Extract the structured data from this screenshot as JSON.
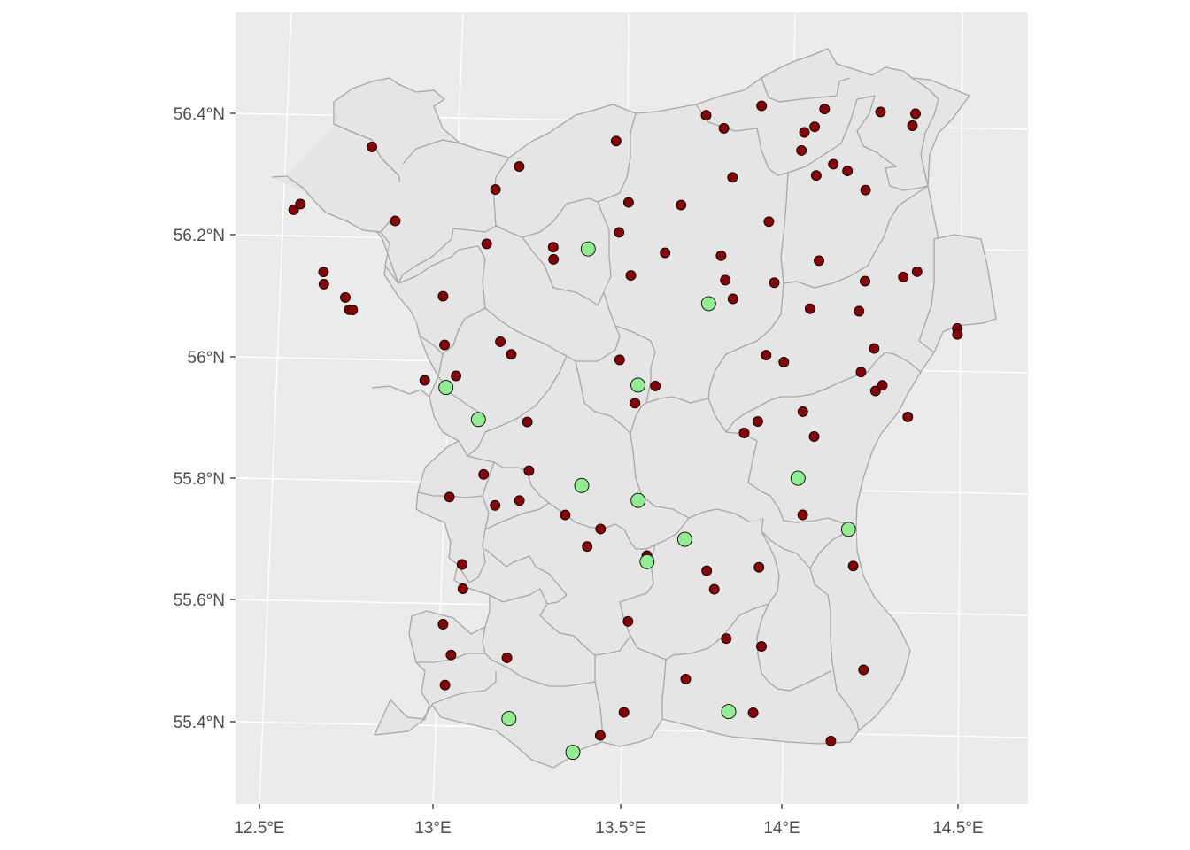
{
  "colors": {
    "panel_background": "#ebebeb",
    "grid": "#ffffff",
    "region_fill": "#e5e5e5",
    "region_border": "#a6a6a6",
    "red_point": "#8b0000",
    "green_point": "#90ee90",
    "point_outline": "#000000",
    "tick_text": "#4d4d4d"
  },
  "axes": {
    "x_ticks": [
      {
        "value": 12.5,
        "label": "12.5°E"
      },
      {
        "value": 13.0,
        "label": "13°E"
      },
      {
        "value": 13.5,
        "label": "13.5°E"
      },
      {
        "value": 14.0,
        "label": "14°E"
      },
      {
        "value": 14.5,
        "label": "14.5°E"
      }
    ],
    "y_ticks": [
      {
        "value": 55.4,
        "label": "55.4°N"
      },
      {
        "value": 55.6,
        "label": "55.6°N"
      },
      {
        "value": 55.8,
        "label": "55.8°N"
      },
      {
        "value": 56.0,
        "label": "56°N"
      },
      {
        "value": 56.2,
        "label": "56.2°N"
      },
      {
        "value": 56.4,
        "label": "56.4°N"
      }
    ]
  },
  "chart_data": {
    "type": "scatter",
    "title": "",
    "xlabel": "",
    "ylabel": "",
    "xlim": [
      12.44,
      14.7
    ],
    "ylim": [
      55.27,
      56.56
    ],
    "grid": true,
    "series": [
      {
        "color": "#8b0000",
        "points": [
          [
            12.86,
            56.34
          ],
          [
            12.63,
            56.23
          ],
          [
            12.65,
            56.24
          ],
          [
            12.71,
            56.13
          ],
          [
            12.71,
            56.11
          ],
          [
            12.77,
            56.09
          ],
          [
            12.78,
            56.07
          ],
          [
            12.79,
            56.07
          ],
          [
            12.92,
            56.22
          ],
          [
            13.28,
            56.32
          ],
          [
            13.21,
            56.28
          ],
          [
            13.18,
            56.19
          ],
          [
            13.05,
            56.1
          ],
          [
            13.05,
            56.02
          ],
          [
            13.08,
            55.97
          ],
          [
            12.99,
            55.96
          ],
          [
            13.21,
            56.03
          ],
          [
            13.24,
            56.01
          ],
          [
            13.56,
            56.37
          ],
          [
            13.59,
            56.27
          ],
          [
            13.56,
            56.22
          ],
          [
            13.37,
            56.19
          ],
          [
            13.37,
            56.17
          ],
          [
            13.59,
            56.15
          ],
          [
            13.74,
            56.27
          ],
          [
            13.69,
            56.19
          ],
          [
            13.85,
            56.19
          ],
          [
            13.86,
            56.15
          ],
          [
            13.88,
            56.12
          ],
          [
            13.82,
            56.42
          ],
          [
            13.87,
            56.4
          ],
          [
            13.98,
            56.44
          ],
          [
            13.89,
            56.32
          ],
          [
            13.99,
            56.25
          ],
          [
            14.0,
            56.15
          ],
          [
            14.16,
            56.44
          ],
          [
            14.1,
            56.4
          ],
          [
            14.13,
            56.41
          ],
          [
            14.09,
            56.37
          ],
          [
            14.13,
            56.33
          ],
          [
            14.18,
            56.35
          ],
          [
            14.22,
            56.34
          ],
          [
            14.27,
            56.31
          ],
          [
            14.32,
            56.44
          ],
          [
            14.42,
            56.44
          ],
          [
            14.41,
            56.42
          ],
          [
            14.13,
            56.19
          ],
          [
            14.1,
            56.11
          ],
          [
            14.26,
            56.16
          ],
          [
            14.24,
            56.11
          ],
          [
            14.37,
            56.17
          ],
          [
            14.41,
            56.18
          ],
          [
            14.52,
            56.09
          ],
          [
            14.52,
            56.08
          ],
          [
            14.28,
            56.05
          ],
          [
            14.24,
            56.01
          ],
          [
            14.28,
            55.98
          ],
          [
            14.3,
            55.99
          ],
          [
            14.37,
            55.94
          ],
          [
            13.55,
            56.01
          ],
          [
            13.59,
            55.94
          ],
          [
            13.65,
            55.97
          ],
          [
            13.97,
            56.03
          ],
          [
            14.02,
            56.02
          ],
          [
            14.07,
            55.94
          ],
          [
            14.1,
            55.9
          ],
          [
            13.94,
            55.92
          ],
          [
            13.9,
            55.9
          ],
          [
            13.28,
            55.9
          ],
          [
            13.15,
            55.81
          ],
          [
            13.28,
            55.82
          ],
          [
            13.05,
            55.77
          ],
          [
            13.18,
            55.76
          ],
          [
            13.25,
            55.77
          ],
          [
            13.38,
            55.75
          ],
          [
            13.48,
            55.73
          ],
          [
            13.44,
            55.7
          ],
          [
            13.61,
            55.69
          ],
          [
            13.78,
            55.67
          ],
          [
            13.8,
            55.64
          ],
          [
            13.93,
            55.68
          ],
          [
            14.06,
            55.77
          ],
          [
            14.2,
            55.69
          ],
          [
            13.08,
            55.66
          ],
          [
            13.08,
            55.62
          ],
          [
            13.02,
            55.56
          ],
          [
            13.04,
            55.51
          ],
          [
            13.2,
            55.51
          ],
          [
            13.02,
            55.46
          ],
          [
            13.55,
            55.58
          ],
          [
            13.53,
            55.43
          ],
          [
            13.46,
            55.39
          ],
          [
            13.71,
            55.49
          ],
          [
            13.83,
            55.56
          ],
          [
            13.93,
            55.55
          ],
          [
            13.9,
            55.44
          ],
          [
            14.22,
            55.52
          ],
          [
            14.12,
            55.4
          ]
        ]
      },
      {
        "color": "#90ee90",
        "points": [
          [
            13.47,
            56.19
          ],
          [
            13.81,
            56.11
          ],
          [
            13.05,
            55.95
          ],
          [
            13.14,
            55.9
          ],
          [
            13.6,
            55.97
          ],
          [
            13.43,
            55.8
          ],
          [
            13.59,
            55.78
          ],
          [
            14.05,
            55.83
          ],
          [
            14.19,
            55.75
          ],
          [
            13.72,
            55.72
          ],
          [
            13.61,
            55.68
          ],
          [
            13.2,
            55.41
          ],
          [
            13.38,
            55.36
          ],
          [
            13.83,
            55.44
          ]
        ]
      }
    ]
  }
}
